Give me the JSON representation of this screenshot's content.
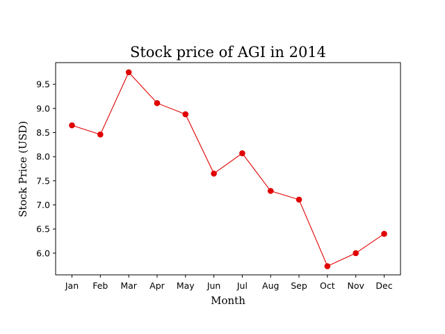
{
  "chart_data": {
    "type": "line",
    "title": "Stock price of AGI in 2014",
    "xlabel": "Month",
    "ylabel": "Stock Price (USD)",
    "categories": [
      "Jan",
      "Feb",
      "Mar",
      "Apr",
      "May",
      "Jun",
      "Jul",
      "Aug",
      "Sep",
      "Oct",
      "Nov",
      "Dec"
    ],
    "series": [
      {
        "values": [
          8.65,
          8.46,
          9.75,
          9.11,
          8.88,
          7.65,
          8.07,
          7.29,
          7.11,
          5.73,
          6.0,
          6.4
        ],
        "color": "#e00000",
        "marker": "circle"
      }
    ],
    "yticks": [
      "6.0",
      "6.5",
      "7.0",
      "7.5",
      "8.0",
      "8.5",
      "9.0",
      "9.5"
    ],
    "ylim": [
      5.55,
      9.95
    ],
    "grid": false,
    "legend": "none"
  }
}
